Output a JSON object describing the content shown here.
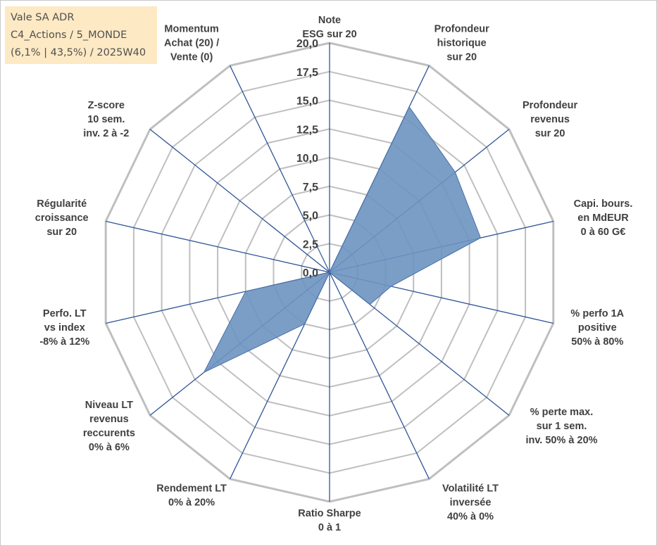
{
  "info": {
    "line1": "Vale SA ADR",
    "line2": "C4_Actions / 5_MONDE",
    "line3": "(6,1% | 43,5%) / 2025W40"
  },
  "colors": {
    "fill": "#6d93c1",
    "stroke": "#4a6fa5",
    "grid": "#bfbfbf",
    "spoke": "#2f5597",
    "info_bg": "#fde9c4"
  },
  "chart_data": {
    "type": "radar",
    "title": "",
    "rmin": 0,
    "rmax": 20,
    "ticks": [
      "0,0",
      "2,5",
      "5,0",
      "7,5",
      "10,0",
      "12,5",
      "15,0",
      "17,5",
      "20,0"
    ],
    "axes": [
      {
        "label": [
          "Note",
          "ESG sur 20"
        ],
        "value": 0
      },
      {
        "label": [
          "Profondeur",
          "historique",
          "sur 20"
        ],
        "value": 16
      },
      {
        "label": [
          "Profondeur",
          "revenus",
          "sur 20"
        ],
        "value": 14
      },
      {
        "label": [
          "Capi. bours.",
          "en MdEUR",
          "0 à 60 G€"
        ],
        "value": 13.5
      },
      {
        "label": [
          "% perfo 1A",
          "positive",
          "50% à 80%"
        ],
        "value": 5.5
      },
      {
        "label": [
          "% perte max.",
          "sur 1 sem.",
          "inv. 50% à 20%"
        ],
        "value": 4.5
      },
      {
        "label": [
          "Volatilité LT",
          "inversée",
          "40% à 0%"
        ],
        "value": 0
      },
      {
        "label": [
          "Ratio Sharpe",
          "0 à 1"
        ],
        "value": 0
      },
      {
        "label": [
          "Rendement LT",
          "0% à 20%"
        ],
        "value": 5
      },
      {
        "label": [
          "Niveau LT",
          "revenus",
          "reccurents",
          "0% à 6%"
        ],
        "value": 14
      },
      {
        "label": [
          "Perfo. LT",
          "vs index",
          "-8% à 12%"
        ],
        "value": 7.5
      },
      {
        "label": [
          "Régularité",
          "croissance",
          "sur 20"
        ],
        "value": 0
      },
      {
        "label": [
          "Z-score",
          "10 sem.",
          "inv. 2 à -2"
        ],
        "value": 0
      },
      {
        "label": [
          "Momentum",
          "Achat (20) /",
          "Vente (0)"
        ],
        "value": 4
      }
    ]
  }
}
